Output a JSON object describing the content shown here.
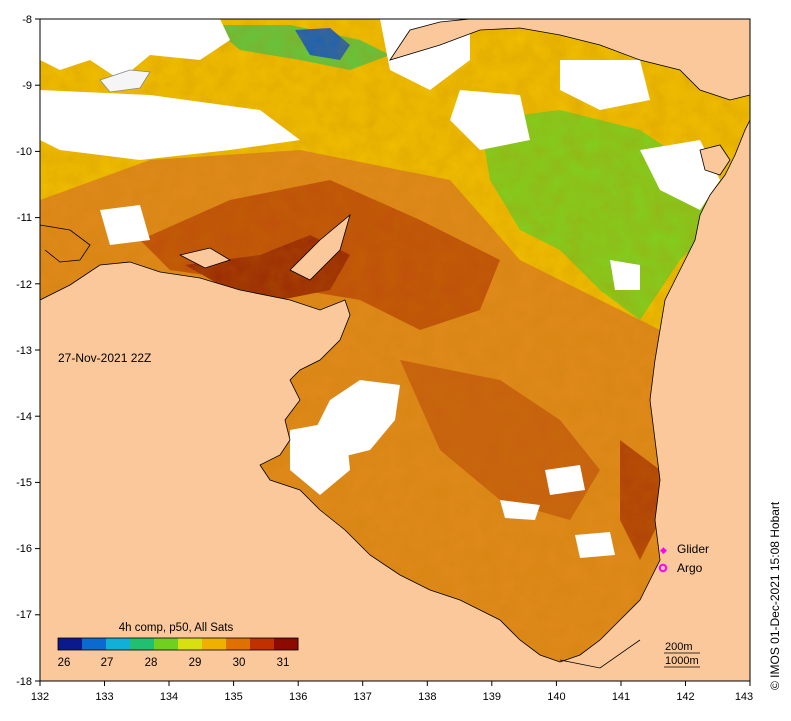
{
  "map": {
    "timestamp": "27-Nov-2021 22Z",
    "credit": "© IMOS 01-Dec-2021 15:08 Hobart",
    "x_axis_ticks": [
      "132",
      "133",
      "134",
      "135",
      "136",
      "137",
      "138",
      "139",
      "140",
      "141",
      "142",
      "143"
    ],
    "y_axis_ticks": [
      "-8",
      "-9",
      "-10",
      "-11",
      "-12",
      "-13",
      "-14",
      "-15",
      "-16",
      "-17",
      "-18"
    ],
    "colorbar": {
      "title": "4h comp, p50, All Sats",
      "tick_labels": [
        "26",
        "27",
        "28",
        "29",
        "30",
        "31"
      ],
      "colors": [
        "#0a1a8c",
        "#0a6ad0",
        "#10b0d8",
        "#20c070",
        "#70d020",
        "#d8e010",
        "#f0b000",
        "#e07000",
        "#c03000",
        "#8c0a00"
      ]
    },
    "legend": {
      "glider_label": "Glider",
      "argo_label": "Argo",
      "marker_color": "#ff00ff"
    },
    "isobaths": [
      "200m",
      "1000m"
    ],
    "colors": {
      "land": "#fac89a",
      "sea_warm": "#e08218",
      "sea_hot": "#c45208",
      "no_data": "#ffffff"
    }
  }
}
